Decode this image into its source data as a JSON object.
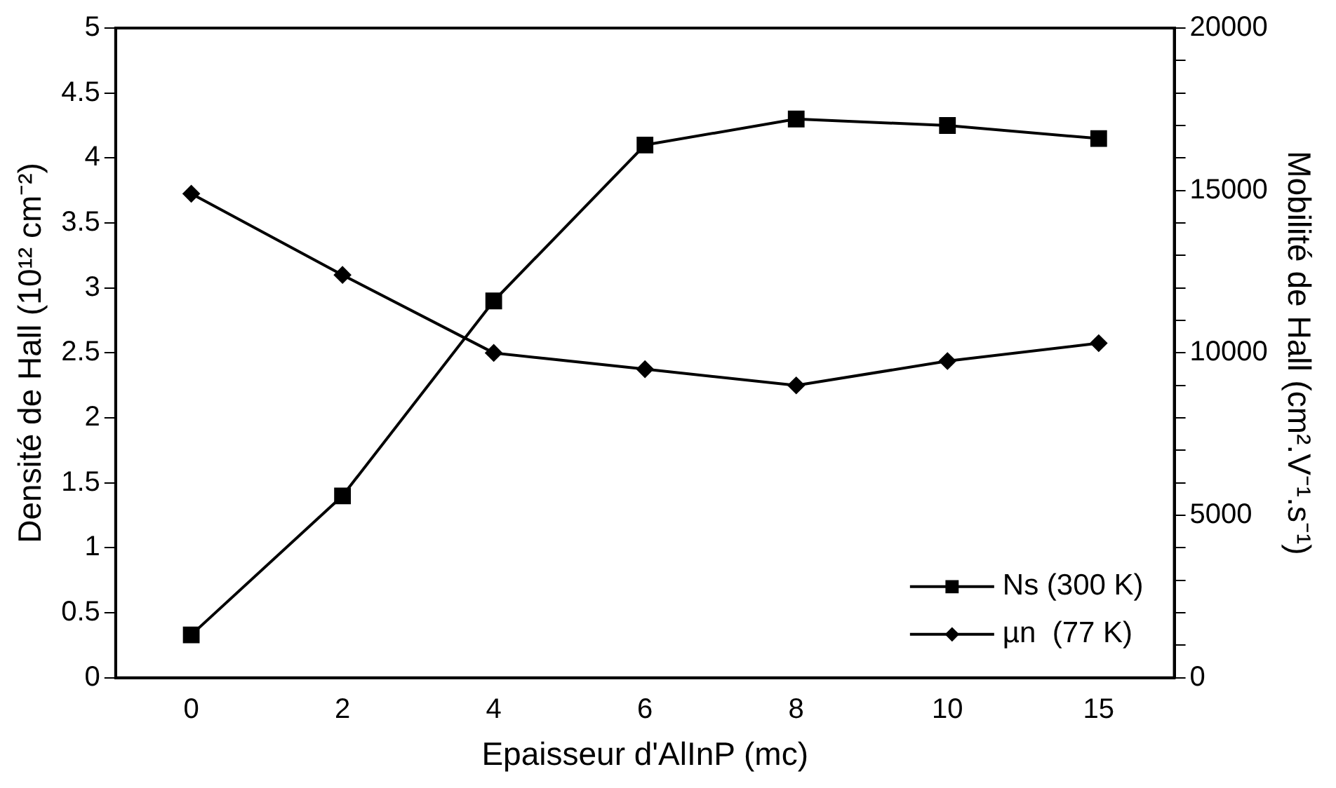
{
  "chart_data": {
    "type": "line",
    "xlabel": "Epaisseur d'AlInP (mc)",
    "ylabel": "Densité de Hall (10¹² cm⁻²)",
    "y2label": "Mobilité de Hall (cm².V⁻¹.s⁻¹)",
    "categories": [
      "0",
      "2",
      "4",
      "6",
      "8",
      "10",
      "15"
    ],
    "series": [
      {
        "name": "Ns (300 K)",
        "color": "#000000",
        "marker": "square",
        "values": [
          0.33,
          1.4,
          2.9,
          4.1,
          4.3,
          4.25,
          4.15
        ]
      },
      {
        "name": "µn  (77 K)",
        "color": "#000000",
        "marker": "diamond",
        "axis": "y2",
        "values": [
          14900,
          12400,
          10000,
          9500,
          9000,
          9750,
          10300
        ]
      }
    ],
    "ylim": [
      0,
      5
    ],
    "yticks": [
      0,
      0.5,
      1,
      1.5,
      2,
      2.5,
      3,
      3.5,
      4,
      4.5,
      5
    ],
    "y2lim": [
      0,
      20000
    ],
    "y2ticks": [
      0,
      {
        "value": 1000,
        "label": null
      },
      {
        "value": 2000,
        "label": null
      },
      {
        "value": 3000,
        "label": null
      },
      {
        "value": 4000,
        "label": null
      },
      5000,
      {
        "value": 6000,
        "label": null
      },
      {
        "value": 7000,
        "label": null
      },
      {
        "value": 8000,
        "label": null
      },
      {
        "value": 9000,
        "label": null
      },
      10000,
      {
        "value": 11000,
        "label": null
      },
      {
        "value": 12000,
        "label": null
      },
      {
        "value": 13000,
        "label": null
      },
      {
        "value": 14000,
        "label": null
      },
      15000,
      {
        "value": 16000,
        "label": null
      },
      {
        "value": 17000,
        "label": null
      },
      {
        "value": 18000,
        "label": null
      },
      {
        "value": 19000,
        "label": null
      },
      20000
    ],
    "grid": false,
    "legend": "bottom right",
    "line_style": "solid"
  }
}
